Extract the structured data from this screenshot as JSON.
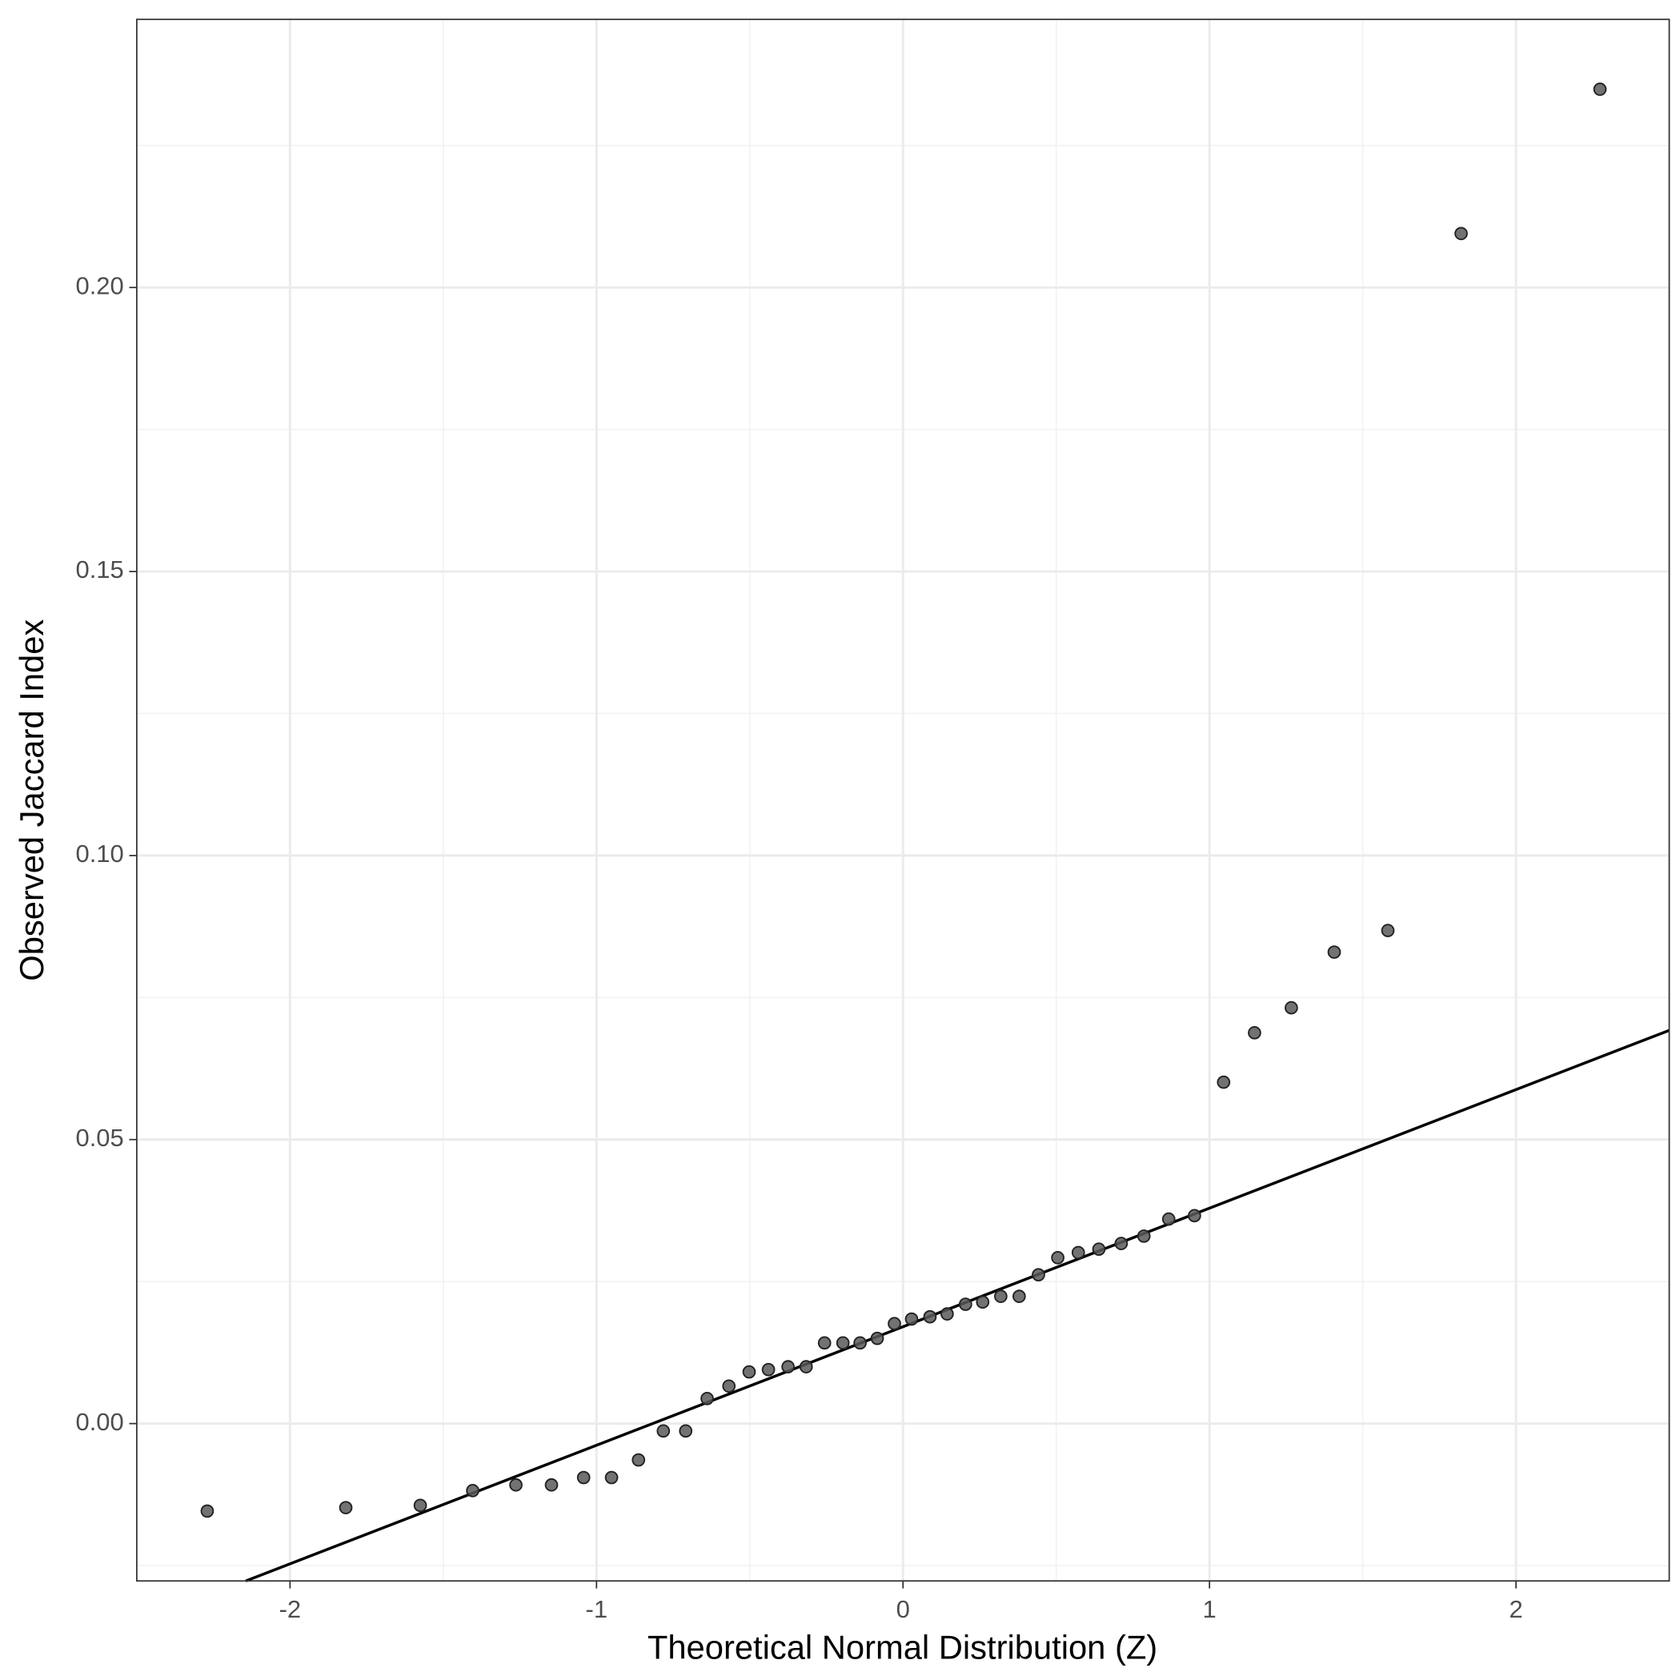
{
  "chart_data": {
    "type": "scatter",
    "xlabel": "Theoretical Normal Distribution (Z)",
    "ylabel": "Observed Jaccard Index",
    "x": [
      -2.27,
      -1.818,
      -1.575,
      -1.404,
      -1.263,
      -1.147,
      -1.042,
      -0.951,
      -0.863,
      -0.782,
      -0.709,
      -0.639,
      -0.568,
      -0.502,
      -0.439,
      -0.375,
      -0.316,
      -0.256,
      -0.196,
      -0.14,
      -0.084,
      -0.028,
      0.028,
      0.088,
      0.144,
      0.204,
      0.26,
      0.319,
      0.379,
      0.442,
      0.505,
      0.572,
      0.639,
      0.712,
      0.786,
      0.867,
      0.951,
      1.046,
      1.147,
      1.267,
      1.407,
      1.582,
      1.821,
      2.274
    ],
    "values": [
      -0.0154,
      -0.0148,
      -0.0144,
      -0.0118,
      -0.0108,
      -0.0108,
      -0.0095,
      -0.0095,
      -0.0064,
      -0.0013,
      -0.0013,
      0.0044,
      0.0066,
      0.0091,
      0.0095,
      0.01,
      0.01,
      0.0142,
      0.0142,
      0.0142,
      0.015,
      0.0176,
      0.0184,
      0.0188,
      0.0193,
      0.021,
      0.0214,
      0.0224,
      0.0224,
      0.0262,
      0.0292,
      0.0301,
      0.0307,
      0.0317,
      0.033,
      0.036,
      0.0366,
      0.0601,
      0.0688,
      0.0732,
      0.083,
      0.0868,
      0.2095,
      0.2349
    ],
    "color": "#595959",
    "reference_line": {
      "intercept": 0.01705,
      "slope": 0.02087,
      "color": "#000000"
    },
    "xlim": [
      -2.5,
      2.5
    ],
    "ylim": [
      -0.0277,
      0.2472
    ],
    "xticks": [
      -2,
      -1,
      0,
      1,
      2
    ],
    "yticks": [
      {
        "value": 0,
        "label": "0.00"
      },
      {
        "value": 0.05,
        "label": "0.05"
      },
      {
        "value": 0.1,
        "label": "0.10"
      },
      {
        "value": 0.15,
        "label": "0.15"
      },
      {
        "value": 0.2,
        "label": "0.20"
      }
    ],
    "grid": true
  }
}
